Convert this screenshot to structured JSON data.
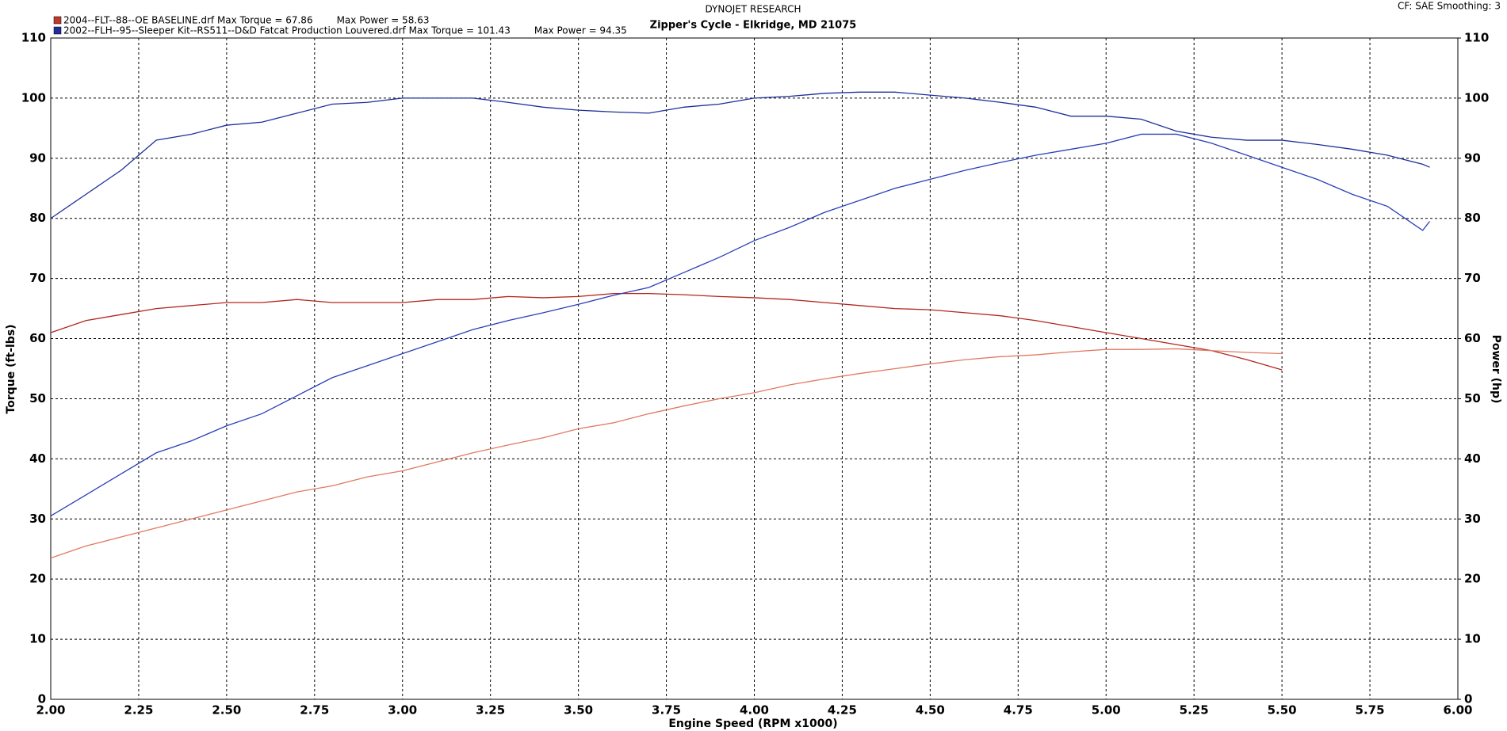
{
  "chart_data": {
    "type": "line",
    "title": "DYNOJET RESEARCH",
    "subtitle": "Zipper's Cycle - Elkridge, MD 21075",
    "corner_note": "CF: SAE  Smoothing: 3",
    "legend": [
      {
        "label": "2004--FLT--88--OE BASELINE.drf Max Torque = 67.86",
        "power_label": "Max Power = 58.63",
        "color": "#c0392b"
      },
      {
        "label": "2002--FLH--95--Sleeper Kit--RS511--D&D Fatcat Production Louvered.drf Max Torque = 101.43",
        "power_label": "Max Power = 94.35",
        "color": "#1f2f9a"
      }
    ],
    "xlabel": "Engine Speed (RPM x1000)",
    "ylabel": "Torque (ft-lbs)",
    "y2label": "Power (hp)",
    "xlim": [
      2,
      6
    ],
    "xticks": [
      {
        "value": 2,
        "label": "2.00"
      },
      {
        "value": 2.25,
        "label": "2.25"
      },
      {
        "value": 2.5,
        "label": "2.50"
      },
      {
        "value": 2.75,
        "label": "2.75"
      },
      {
        "value": 3,
        "label": "3.00"
      },
      {
        "value": 3.25,
        "label": "3.25"
      },
      {
        "value": 3.5,
        "label": "3.50"
      },
      {
        "value": 3.75,
        "label": "3.75"
      },
      {
        "value": 4,
        "label": "4.00"
      },
      {
        "value": 4.25,
        "label": "4.25"
      },
      {
        "value": 4.5,
        "label": "4.50"
      },
      {
        "value": 4.75,
        "label": "4.75"
      },
      {
        "value": 5,
        "label": "5.00"
      },
      {
        "value": 5.25,
        "label": "5.25"
      },
      {
        "value": 5.5,
        "label": "5.50"
      },
      {
        "value": 5.75,
        "label": "5.75"
      },
      {
        "value": 6,
        "label": "6.00"
      }
    ],
    "ylim": [
      0,
      110
    ],
    "yticks": [
      0,
      10,
      20,
      30,
      40,
      50,
      60,
      70,
      80,
      90,
      100,
      110
    ],
    "y2lim": [
      0,
      110
    ],
    "y2ticks": [
      0,
      10,
      20,
      30,
      40,
      50,
      60,
      70,
      80,
      90,
      100,
      110
    ],
    "grid": true,
    "series": [
      {
        "color": "#b3261e",
        "x": [
          2.0,
          2.1,
          2.2,
          2.3,
          2.4,
          2.5,
          2.6,
          2.7,
          2.8,
          2.9,
          3.0,
          3.1,
          3.2,
          3.3,
          3.4,
          3.5,
          3.6,
          3.7,
          3.8,
          3.9,
          4.0,
          4.1,
          4.2,
          4.3,
          4.4,
          4.5,
          4.6,
          4.7,
          4.8,
          4.9,
          5.0,
          5.1,
          5.2,
          5.3,
          5.4,
          5.5
        ],
        "values": [
          61,
          63,
          64,
          65,
          65.5,
          66,
          66,
          66.5,
          66,
          66,
          66,
          66.5,
          66.5,
          67,
          66.8,
          67,
          67.5,
          67.5,
          67.3,
          67,
          66.8,
          66.5,
          66,
          65.5,
          65,
          64.8,
          64.3,
          63.8,
          63,
          62,
          61,
          60,
          59,
          58,
          56.5,
          54.8
        ]
      },
      {
        "color": "#e07a62",
        "axis": "y2",
        "x": [
          2.0,
          2.1,
          2.2,
          2.3,
          2.4,
          2.5,
          2.6,
          2.7,
          2.8,
          2.9,
          3.0,
          3.1,
          3.2,
          3.3,
          3.4,
          3.5,
          3.6,
          3.7,
          3.8,
          3.9,
          4.0,
          4.1,
          4.2,
          4.3,
          4.4,
          4.5,
          4.6,
          4.7,
          4.8,
          4.9,
          5.0,
          5.1,
          5.2,
          5.3,
          5.4,
          5.5
        ],
        "values": [
          23.5,
          25.5,
          27,
          28.5,
          30,
          31.5,
          33,
          34.5,
          35.5,
          37,
          38,
          39.5,
          41,
          42.3,
          43.5,
          45,
          46,
          47.5,
          48.8,
          50,
          51,
          52.3,
          53.3,
          54.2,
          55,
          55.8,
          56.5,
          57,
          57.3,
          57.8,
          58.2,
          58.2,
          58.3,
          58,
          57.7,
          57.5
        ]
      },
      {
        "color": "#1f2f9a",
        "x": [
          2.0,
          2.1,
          2.2,
          2.25,
          2.3,
          2.4,
          2.5,
          2.6,
          2.7,
          2.8,
          2.9,
          3.0,
          3.1,
          3.2,
          3.3,
          3.4,
          3.5,
          3.6,
          3.7,
          3.8,
          3.9,
          4.0,
          4.1,
          4.2,
          4.3,
          4.4,
          4.5,
          4.6,
          4.7,
          4.8,
          4.9,
          5.0,
          5.1,
          5.2,
          5.3,
          5.4,
          5.5,
          5.6,
          5.7,
          5.8,
          5.9,
          5.92
        ],
        "values": [
          80,
          84,
          88,
          90.5,
          93,
          94,
          95.5,
          96,
          97.5,
          99,
          99.3,
          100,
          100,
          100,
          99.3,
          98.5,
          98,
          97.7,
          97.5,
          98.5,
          99,
          100,
          100.3,
          100.8,
          101,
          101,
          100.5,
          100,
          99.3,
          98.5,
          97,
          97,
          96.5,
          94.5,
          93.5,
          93,
          93,
          92.3,
          91.5,
          90.5,
          89,
          88.5
        ]
      },
      {
        "color": "#2a3fb8",
        "axis": "y2",
        "x": [
          2.0,
          2.1,
          2.2,
          2.3,
          2.4,
          2.5,
          2.6,
          2.7,
          2.8,
          2.9,
          3.0,
          3.1,
          3.2,
          3.3,
          3.4,
          3.5,
          3.6,
          3.7,
          3.8,
          3.9,
          4.0,
          4.1,
          4.2,
          4.3,
          4.4,
          4.5,
          4.6,
          4.7,
          4.8,
          4.9,
          5.0,
          5.1,
          5.2,
          5.3,
          5.4,
          5.5,
          5.6,
          5.7,
          5.8,
          5.9,
          5.92
        ],
        "values": [
          30.5,
          34,
          37.5,
          41,
          43,
          45.5,
          47.5,
          50.5,
          53.5,
          55.5,
          57.5,
          59.5,
          61.5,
          63,
          64.3,
          65.7,
          67.2,
          68.5,
          71,
          73.5,
          76.3,
          78.5,
          81,
          83,
          85,
          86.5,
          88,
          89.3,
          90.5,
          91.5,
          92.5,
          94,
          94,
          92.5,
          90.5,
          88.5,
          86.5,
          84,
          82,
          78,
          79.5
        ]
      }
    ]
  }
}
